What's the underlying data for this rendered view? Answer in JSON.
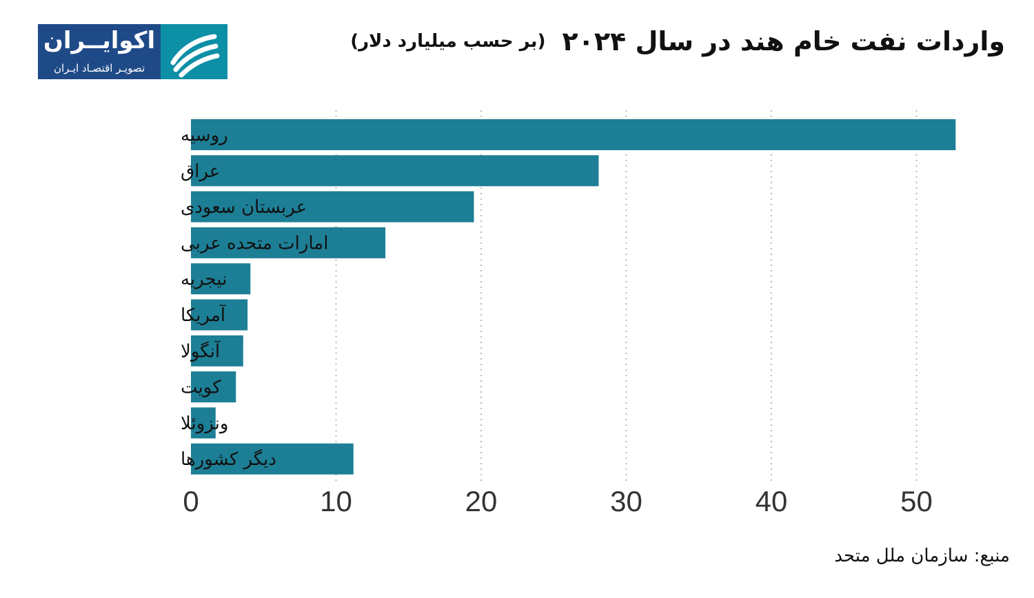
{
  "header": {
    "title": "واردات نفت خام هند در سال ۲۰۲۴",
    "subtitle": "(بر حسب میلیارد دلار)"
  },
  "logo": {
    "name": "اکوایــران",
    "tagline": "تصویـر اقتصـاد ایـران",
    "colors": {
      "left": "#1f4a88",
      "right": "#0d8fa6"
    }
  },
  "footer": {
    "source": "منبع: سازمان ملل متحد"
  },
  "chart_data": {
    "type": "bar",
    "orientation": "horizontal",
    "categories": [
      "روسیه",
      "عراق",
      "عربستان سعودی",
      "امارات متحده عربی",
      "نیجریه",
      "آمریکا",
      "آنگولا",
      "کویت",
      "ونزوئلا",
      "دیگر کشورها"
    ],
    "values": [
      52.7,
      28.1,
      19.5,
      13.4,
      4.1,
      3.9,
      3.6,
      3.1,
      1.7,
      11.2
    ],
    "xticks": [
      0,
      10,
      20,
      30,
      40,
      50
    ],
    "xlim": [
      0,
      55
    ],
    "grid": "vertical-dotted",
    "bar_color": "#1d7f96"
  }
}
